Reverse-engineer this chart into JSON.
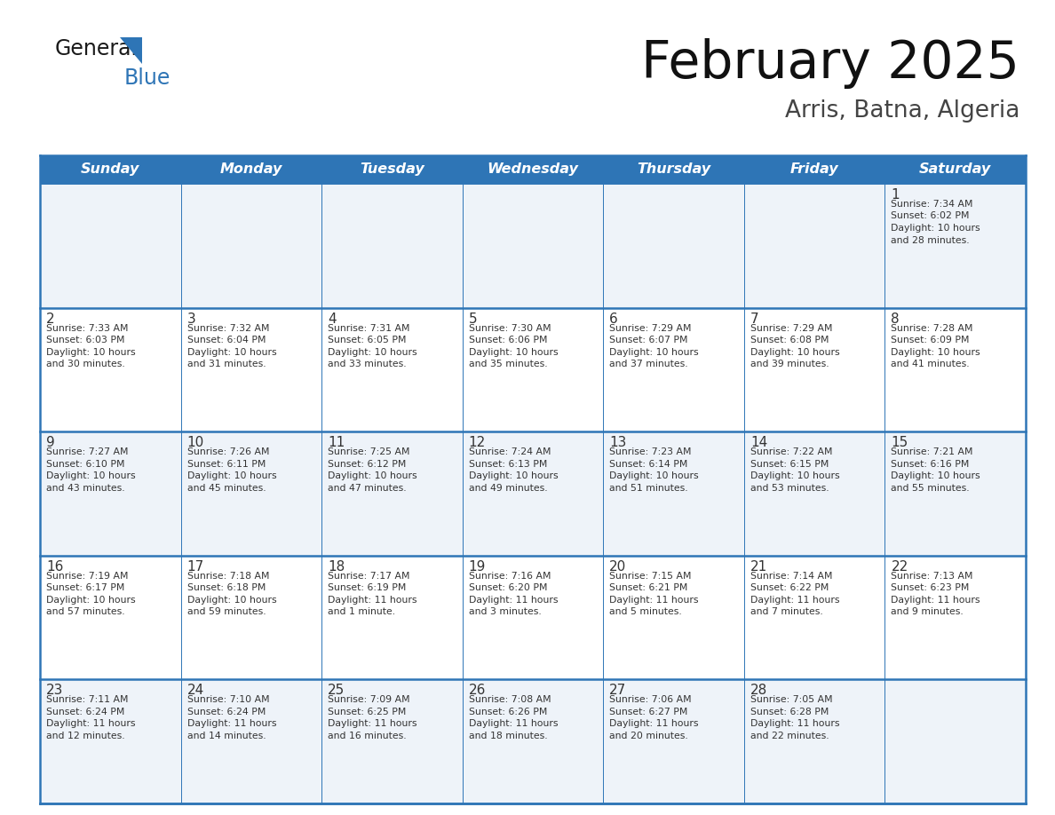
{
  "title": "February 2025",
  "subtitle": "Arris, Batna, Algeria",
  "header_bg": "#2E75B6",
  "header_text_color": "#FFFFFF",
  "day_names": [
    "Sunday",
    "Monday",
    "Tuesday",
    "Wednesday",
    "Thursday",
    "Friday",
    "Saturday"
  ],
  "row_bgs": [
    "#EEF3F9",
    "#FFFFFF",
    "#EEF3F9",
    "#FFFFFF",
    "#EEF3F9"
  ],
  "border_color": "#2E75B6",
  "text_color": "#333333",
  "days": [
    {
      "day": 1,
      "col": 6,
      "row": 0,
      "sunrise": "7:34 AM",
      "sunset": "6:02 PM",
      "daylight_h": "10 hours",
      "daylight_m": "28 minutes."
    },
    {
      "day": 2,
      "col": 0,
      "row": 1,
      "sunrise": "7:33 AM",
      "sunset": "6:03 PM",
      "daylight_h": "10 hours",
      "daylight_m": "30 minutes."
    },
    {
      "day": 3,
      "col": 1,
      "row": 1,
      "sunrise": "7:32 AM",
      "sunset": "6:04 PM",
      "daylight_h": "10 hours",
      "daylight_m": "31 minutes."
    },
    {
      "day": 4,
      "col": 2,
      "row": 1,
      "sunrise": "7:31 AM",
      "sunset": "6:05 PM",
      "daylight_h": "10 hours",
      "daylight_m": "33 minutes."
    },
    {
      "day": 5,
      "col": 3,
      "row": 1,
      "sunrise": "7:30 AM",
      "sunset": "6:06 PM",
      "daylight_h": "10 hours",
      "daylight_m": "35 minutes."
    },
    {
      "day": 6,
      "col": 4,
      "row": 1,
      "sunrise": "7:29 AM",
      "sunset": "6:07 PM",
      "daylight_h": "10 hours",
      "daylight_m": "37 minutes."
    },
    {
      "day": 7,
      "col": 5,
      "row": 1,
      "sunrise": "7:29 AM",
      "sunset": "6:08 PM",
      "daylight_h": "10 hours",
      "daylight_m": "39 minutes."
    },
    {
      "day": 8,
      "col": 6,
      "row": 1,
      "sunrise": "7:28 AM",
      "sunset": "6:09 PM",
      "daylight_h": "10 hours",
      "daylight_m": "41 minutes."
    },
    {
      "day": 9,
      "col": 0,
      "row": 2,
      "sunrise": "7:27 AM",
      "sunset": "6:10 PM",
      "daylight_h": "10 hours",
      "daylight_m": "43 minutes."
    },
    {
      "day": 10,
      "col": 1,
      "row": 2,
      "sunrise": "7:26 AM",
      "sunset": "6:11 PM",
      "daylight_h": "10 hours",
      "daylight_m": "45 minutes."
    },
    {
      "day": 11,
      "col": 2,
      "row": 2,
      "sunrise": "7:25 AM",
      "sunset": "6:12 PM",
      "daylight_h": "10 hours",
      "daylight_m": "47 minutes."
    },
    {
      "day": 12,
      "col": 3,
      "row": 2,
      "sunrise": "7:24 AM",
      "sunset": "6:13 PM",
      "daylight_h": "10 hours",
      "daylight_m": "49 minutes."
    },
    {
      "day": 13,
      "col": 4,
      "row": 2,
      "sunrise": "7:23 AM",
      "sunset": "6:14 PM",
      "daylight_h": "10 hours",
      "daylight_m": "51 minutes."
    },
    {
      "day": 14,
      "col": 5,
      "row": 2,
      "sunrise": "7:22 AM",
      "sunset": "6:15 PM",
      "daylight_h": "10 hours",
      "daylight_m": "53 minutes."
    },
    {
      "day": 15,
      "col": 6,
      "row": 2,
      "sunrise": "7:21 AM",
      "sunset": "6:16 PM",
      "daylight_h": "10 hours",
      "daylight_m": "55 minutes."
    },
    {
      "day": 16,
      "col": 0,
      "row": 3,
      "sunrise": "7:19 AM",
      "sunset": "6:17 PM",
      "daylight_h": "10 hours",
      "daylight_m": "57 minutes."
    },
    {
      "day": 17,
      "col": 1,
      "row": 3,
      "sunrise": "7:18 AM",
      "sunset": "6:18 PM",
      "daylight_h": "10 hours",
      "daylight_m": "59 minutes."
    },
    {
      "day": 18,
      "col": 2,
      "row": 3,
      "sunrise": "7:17 AM",
      "sunset": "6:19 PM",
      "daylight_h": "11 hours",
      "daylight_m": "1 minute."
    },
    {
      "day": 19,
      "col": 3,
      "row": 3,
      "sunrise": "7:16 AM",
      "sunset": "6:20 PM",
      "daylight_h": "11 hours",
      "daylight_m": "3 minutes."
    },
    {
      "day": 20,
      "col": 4,
      "row": 3,
      "sunrise": "7:15 AM",
      "sunset": "6:21 PM",
      "daylight_h": "11 hours",
      "daylight_m": "5 minutes."
    },
    {
      "day": 21,
      "col": 5,
      "row": 3,
      "sunrise": "7:14 AM",
      "sunset": "6:22 PM",
      "daylight_h": "11 hours",
      "daylight_m": "7 minutes."
    },
    {
      "day": 22,
      "col": 6,
      "row": 3,
      "sunrise": "7:13 AM",
      "sunset": "6:23 PM",
      "daylight_h": "11 hours",
      "daylight_m": "9 minutes."
    },
    {
      "day": 23,
      "col": 0,
      "row": 4,
      "sunrise": "7:11 AM",
      "sunset": "6:24 PM",
      "daylight_h": "11 hours",
      "daylight_m": "12 minutes."
    },
    {
      "day": 24,
      "col": 1,
      "row": 4,
      "sunrise": "7:10 AM",
      "sunset": "6:24 PM",
      "daylight_h": "11 hours",
      "daylight_m": "14 minutes."
    },
    {
      "day": 25,
      "col": 2,
      "row": 4,
      "sunrise": "7:09 AM",
      "sunset": "6:25 PM",
      "daylight_h": "11 hours",
      "daylight_m": "16 minutes."
    },
    {
      "day": 26,
      "col": 3,
      "row": 4,
      "sunrise": "7:08 AM",
      "sunset": "6:26 PM",
      "daylight_h": "11 hours",
      "daylight_m": "18 minutes."
    },
    {
      "day": 27,
      "col": 4,
      "row": 4,
      "sunrise": "7:06 AM",
      "sunset": "6:27 PM",
      "daylight_h": "11 hours",
      "daylight_m": "20 minutes."
    },
    {
      "day": 28,
      "col": 5,
      "row": 4,
      "sunrise": "7:05 AM",
      "sunset": "6:28 PM",
      "daylight_h": "11 hours",
      "daylight_m": "22 minutes."
    }
  ],
  "logo_color1": "#1a1a1a",
  "logo_color2": "#2E75B6"
}
